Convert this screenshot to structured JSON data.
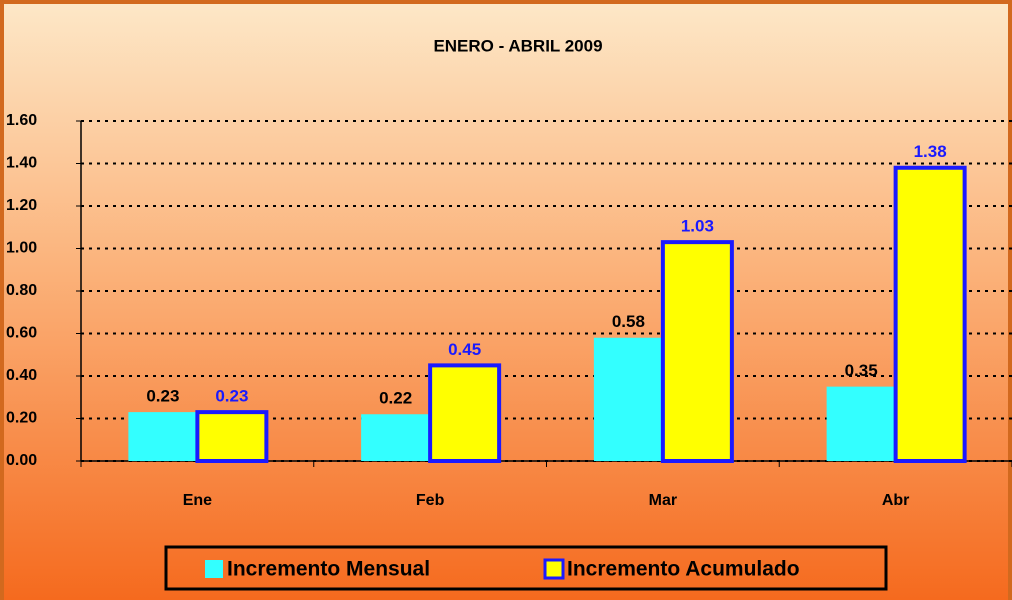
{
  "chart_data": {
    "type": "bar",
    "title": "ENERO - ABRIL 2009",
    "categories": [
      "Ene",
      "Feb",
      "Mar",
      "Abr"
    ],
    "series": [
      {
        "name": "Incremento Mensual",
        "color": "#33ffff",
        "label_color": "#000000",
        "values": [
          0.23,
          0.22,
          0.58,
          0.35
        ]
      },
      {
        "name": "Incremento Acumulado",
        "color": "#ffff00",
        "border_color": "#1a1aff",
        "label_color": "#1a1aff",
        "values": [
          0.23,
          0.45,
          1.03,
          1.38
        ]
      }
    ],
    "ylim": [
      0,
      1.6
    ],
    "yticks": [
      {
        "value": 0,
        "label": "0.00"
      },
      {
        "value": 0.2,
        "label": "0.20"
      },
      {
        "value": 0.4,
        "label": "0.40"
      },
      {
        "value": 0.6,
        "label": "0.60"
      },
      {
        "value": 0.8,
        "label": "0.80"
      },
      {
        "value": 1.0,
        "label": "1.00"
      },
      {
        "value": 1.2,
        "label": "1.20"
      },
      {
        "value": 1.4,
        "label": "1.40"
      },
      {
        "value": 1.6,
        "label": "1.60"
      }
    ],
    "grid": true,
    "legend": "bottom"
  }
}
